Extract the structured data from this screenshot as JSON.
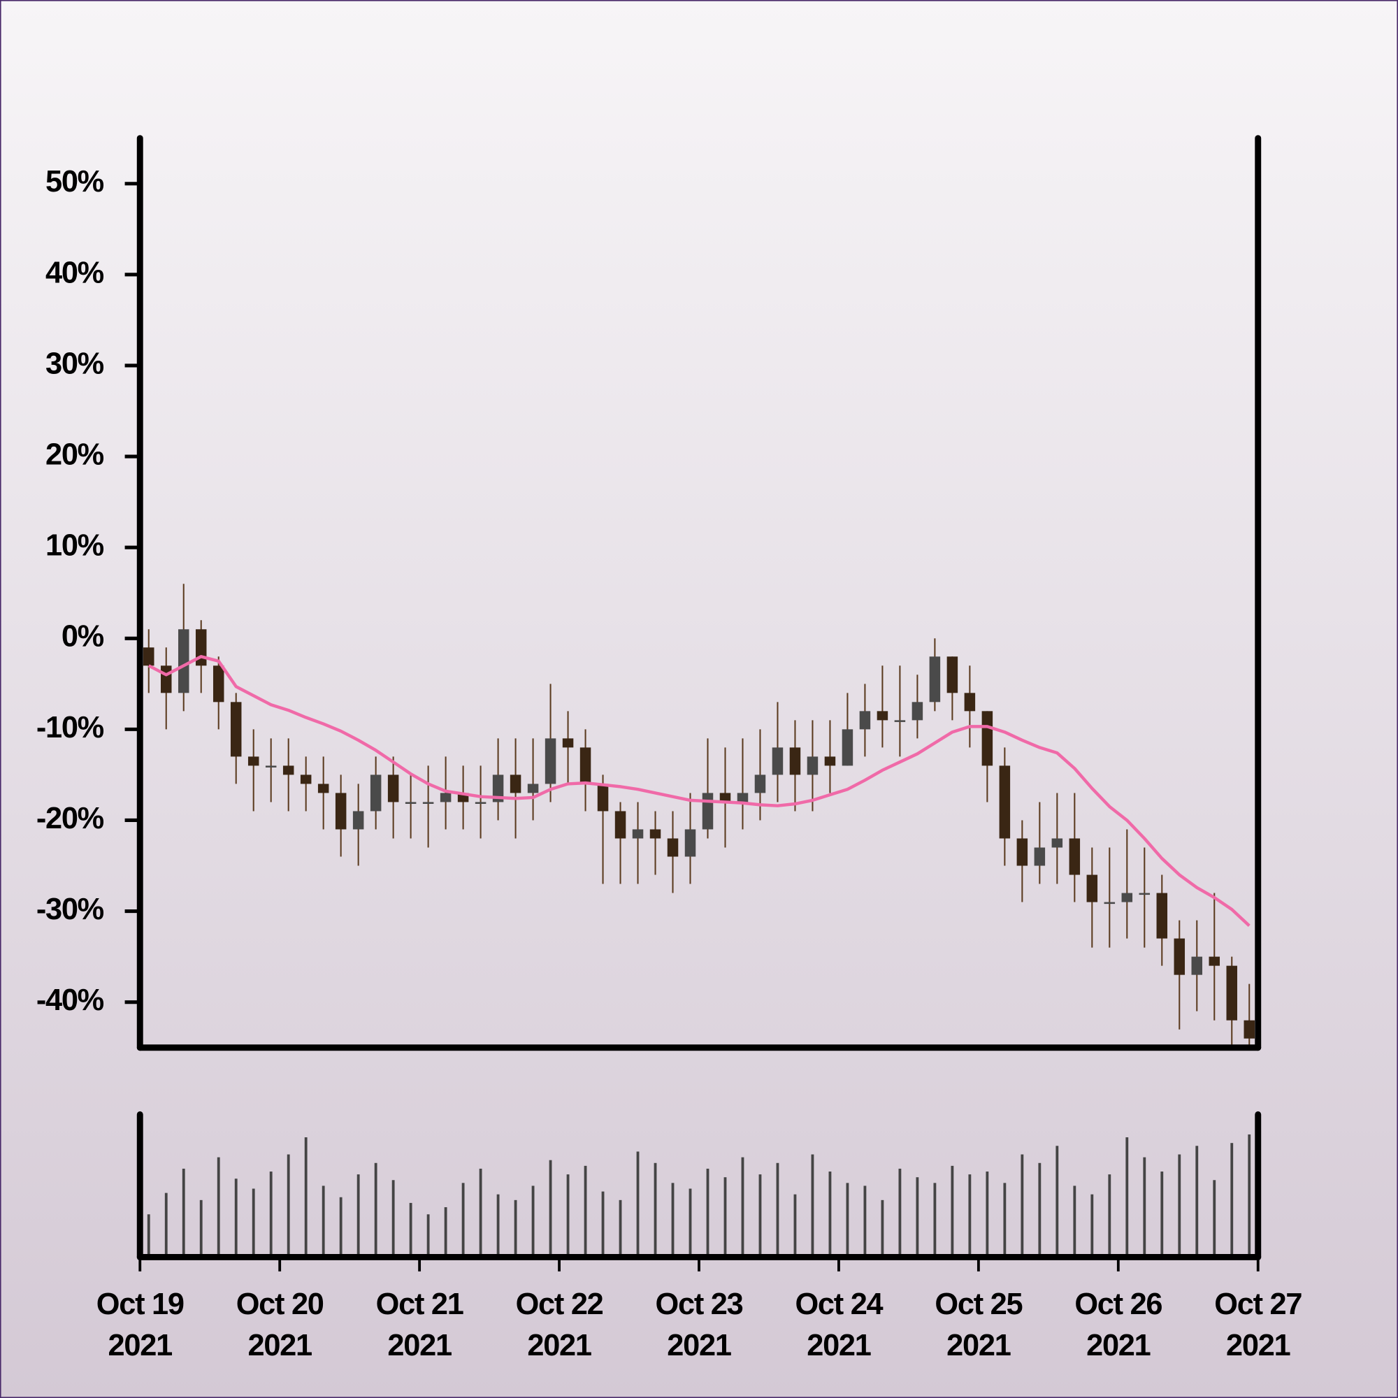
{
  "chart_data": {
    "type": "candlestick",
    "x": [
      0.0625,
      0.1875,
      0.3125,
      0.4375,
      0.5625,
      0.6875,
      0.8125,
      0.9375,
      1.0625,
      1.1875,
      1.3125,
      1.4375,
      1.5625,
      1.6875,
      1.8125,
      1.9375,
      2.0625,
      2.1875,
      2.3125,
      2.4375,
      2.5625,
      2.6875,
      2.8125,
      2.9375,
      3.0625,
      3.1875,
      3.3125,
      3.4375,
      3.5625,
      3.6875,
      3.8125,
      3.9375,
      4.0625,
      4.1875,
      4.3125,
      4.4375,
      4.5625,
      4.6875,
      4.8125,
      4.9375,
      5.0625,
      5.1875,
      5.3125,
      5.4375,
      5.5625,
      5.6875,
      5.8125,
      5.9375,
      6.0625,
      6.1875,
      6.3125,
      6.4375,
      6.5625,
      6.6875,
      6.8125,
      6.9375,
      7.0625,
      7.1875,
      7.3125,
      7.4375,
      7.5625,
      7.6875,
      7.8125,
      7.9375
    ],
    "open": [
      -1,
      -3,
      -6,
      1,
      -3,
      -7,
      -13,
      -14,
      -14,
      -15,
      -16,
      -17,
      -21,
      -19,
      -15,
      -18,
      -18,
      -18,
      -17,
      -18,
      -18,
      -15,
      -17,
      -16,
      -11,
      -12,
      -16,
      -19,
      -22,
      -21,
      -22,
      -24,
      -21,
      -17,
      -18,
      -17,
      -15,
      -12,
      -15,
      -13,
      -14,
      -10,
      -8,
      -9,
      -9,
      -7,
      -2,
      -6,
      -8,
      -14,
      -22,
      -25,
      -23,
      -22,
      -26,
      -29,
      -29,
      -28,
      -28,
      -33,
      -37,
      -35,
      -36,
      -42
    ],
    "high": [
      1,
      -1,
      6,
      2,
      -2,
      -6,
      -10,
      -11,
      -11,
      -13,
      -13,
      -15,
      -16,
      -13,
      -13,
      -15,
      -14,
      -13,
      -14,
      -14,
      -11,
      -11,
      -11,
      -5,
      -8,
      -10,
      -15,
      -18,
      -18,
      -19,
      -19,
      -17,
      -11,
      -12,
      -11,
      -10,
      -7,
      -9,
      -9,
      -9,
      -6,
      -5,
      -3,
      -3,
      -4,
      0,
      -2,
      -3,
      -8,
      -12,
      -20,
      -18,
      -17,
      -17,
      -23,
      -23,
      -21,
      -23,
      -26,
      -31,
      -31,
      -28,
      -35,
      -38
    ],
    "low": [
      -6,
      -10,
      -8,
      -6,
      -10,
      -16,
      -19,
      -18,
      -19,
      -19,
      -21,
      -24,
      -25,
      -21,
      -22,
      -22,
      -23,
      -21,
      -21,
      -22,
      -20,
      -22,
      -20,
      -18,
      -16,
      -19,
      -27,
      -27,
      -27,
      -26,
      -28,
      -27,
      -22,
      -23,
      -21,
      -20,
      -18,
      -19,
      -19,
      -17,
      -14,
      -13,
      -12,
      -13,
      -11,
      -8,
      -9,
      -12,
      -18,
      -25,
      -29,
      -27,
      -27,
      -29,
      -34,
      -34,
      -33,
      -34,
      -36,
      -43,
      -41,
      -42,
      -45,
      -45
    ],
    "close": [
      -3,
      -6,
      1,
      -3,
      -7,
      -13,
      -14,
      -14,
      -15,
      -16,
      -17,
      -21,
      -19,
      -15,
      -18,
      -18,
      -18,
      -17,
      -18,
      -18,
      -15,
      -17,
      -16,
      -11,
      -12,
      -16,
      -19,
      -22,
      -21,
      -22,
      -24,
      -21,
      -17,
      -18,
      -17,
      -15,
      -12,
      -15,
      -13,
      -14,
      -10,
      -8,
      -9,
      -9,
      -7,
      -2,
      -6,
      -8,
      -14,
      -22,
      -25,
      -23,
      -22,
      -26,
      -29,
      -29,
      -28,
      -28,
      -33,
      -37,
      -35,
      -36,
      -42,
      -44
    ],
    "moving_average": {
      "color": "#f06aa8",
      "values": [
        -3,
        -4,
        -3,
        -2,
        -2.5,
        -5.3,
        -6.3,
        -7.3,
        -7.9,
        -8.7,
        -9.4,
        -10.2,
        -11.2,
        -12.3,
        -13.6,
        -14.9,
        -16,
        -16.8,
        -17.1,
        -17.4,
        -17.5,
        -17.6,
        -17.5,
        -16.6,
        -16,
        -15.9,
        -16.1,
        -16.3,
        -16.6,
        -17,
        -17.4,
        -17.8,
        -17.9,
        -18,
        -18.1,
        -18.3,
        -18.4,
        -18.2,
        -17.8,
        -17.2,
        -16.6,
        -15.6,
        -14.5,
        -13.6,
        -12.7,
        -11.5,
        -10.3,
        -9.7,
        -9.7,
        -10.3,
        -11.2,
        -12,
        -12.6,
        -14.3,
        -16.5,
        -18.5,
        -20,
        -22,
        -24.2,
        -26,
        -27.4,
        -28.5,
        -29.8,
        -31.6
      ]
    },
    "volume": [
      30,
      45,
      62,
      40,
      70,
      55,
      48,
      60,
      72,
      84,
      50,
      42,
      58,
      66,
      54,
      38,
      30,
      35,
      52,
      62,
      44,
      40,
      50,
      68,
      58,
      64,
      46,
      40,
      74,
      66,
      52,
      48,
      62,
      56,
      70,
      58,
      66,
      44,
      72,
      60,
      52,
      50,
      40,
      62,
      56,
      52,
      64,
      58,
      60,
      52,
      72,
      66,
      78,
      50,
      44,
      58,
      84,
      70,
      60,
      72,
      78,
      54,
      80,
      86
    ],
    "volume_ylim": [
      0,
      100
    ],
    "up_color": "#4a4a4a",
    "down_color": "#3a2614",
    "wick_color": "#5a3a1e",
    "xlim": [
      0,
      8
    ],
    "xticks": [
      {
        "value": 0,
        "label": "Oct 19 2021"
      },
      {
        "value": 1,
        "label": "Oct 20 2021"
      },
      {
        "value": 2,
        "label": "Oct 21 2021"
      },
      {
        "value": 3,
        "label": "Oct 22 2021"
      },
      {
        "value": 4,
        "label": "Oct 23 2021"
      },
      {
        "value": 5,
        "label": "Oct 24 2021"
      },
      {
        "value": 6,
        "label": "Oct 25 2021"
      },
      {
        "value": 7,
        "label": "Oct 26 2021"
      },
      {
        "value": 8,
        "label": "Oct 27 2021"
      }
    ],
    "ylim": [
      -45,
      55
    ],
    "yticks": [
      {
        "value": -40,
        "label": "-40%"
      },
      {
        "value": -30,
        "label": "-30%"
      },
      {
        "value": -20,
        "label": "-20%"
      },
      {
        "value": -10,
        "label": "-10%"
      },
      {
        "value": 0,
        "label": "0%"
      },
      {
        "value": 10,
        "label": "10%"
      },
      {
        "value": 20,
        "label": "20%"
      },
      {
        "value": 30,
        "label": "30%"
      },
      {
        "value": 40,
        "label": "40%"
      },
      {
        "value": 50,
        "label": "50%"
      }
    ]
  }
}
